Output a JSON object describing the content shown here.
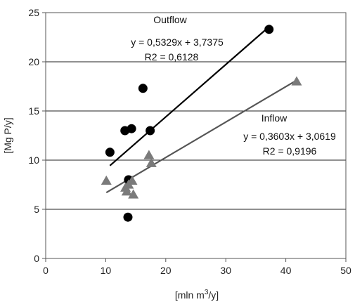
{
  "chart_data": {
    "type": "scatter",
    "xlabel": "[mln m",
    "xlabel_sup": "3",
    "xlabel_end": "/y]",
    "ylabel": "[Mg P/y]",
    "xlim": [
      0,
      50
    ],
    "ylim": [
      0,
      25
    ],
    "x_ticks": [
      0,
      10,
      20,
      30,
      40,
      50
    ],
    "y_ticks": [
      0,
      5,
      10,
      15,
      20,
      25
    ],
    "grid": "horizontal",
    "series": [
      {
        "name": "Outflow",
        "marker": "circle",
        "color": "#000000",
        "x": [
          10.7,
          13.2,
          14.3,
          16.2,
          17.4,
          13.8,
          13.7,
          37.2
        ],
        "y": [
          10.8,
          13.0,
          13.2,
          17.3,
          13.0,
          8.0,
          4.2,
          23.3
        ],
        "trendline": {
          "slope": 0.5329,
          "intercept": 3.7375,
          "x_range": [
            10.7,
            37.2
          ],
          "color": "#000000"
        },
        "equation": "y = 0,5329x + 3,7375",
        "r2": "R2 = 0,6128"
      },
      {
        "name": "Inflow",
        "marker": "triangle",
        "color": "#7a7a7a",
        "x": [
          10.1,
          13.3,
          13.8,
          14.4,
          14.6,
          17.2,
          17.6,
          41.8,
          13.5
        ],
        "y": [
          7.9,
          7.2,
          7.5,
          7.9,
          6.5,
          10.5,
          9.7,
          18.0,
          6.8
        ],
        "trendline": {
          "slope": 0.3603,
          "intercept": 3.0619,
          "x_range": [
            10.1,
            41.8
          ],
          "color": "#555555"
        },
        "equation": "y = 0,3603x + 3,0619",
        "r2": "R2 = 0,9196"
      }
    ]
  }
}
